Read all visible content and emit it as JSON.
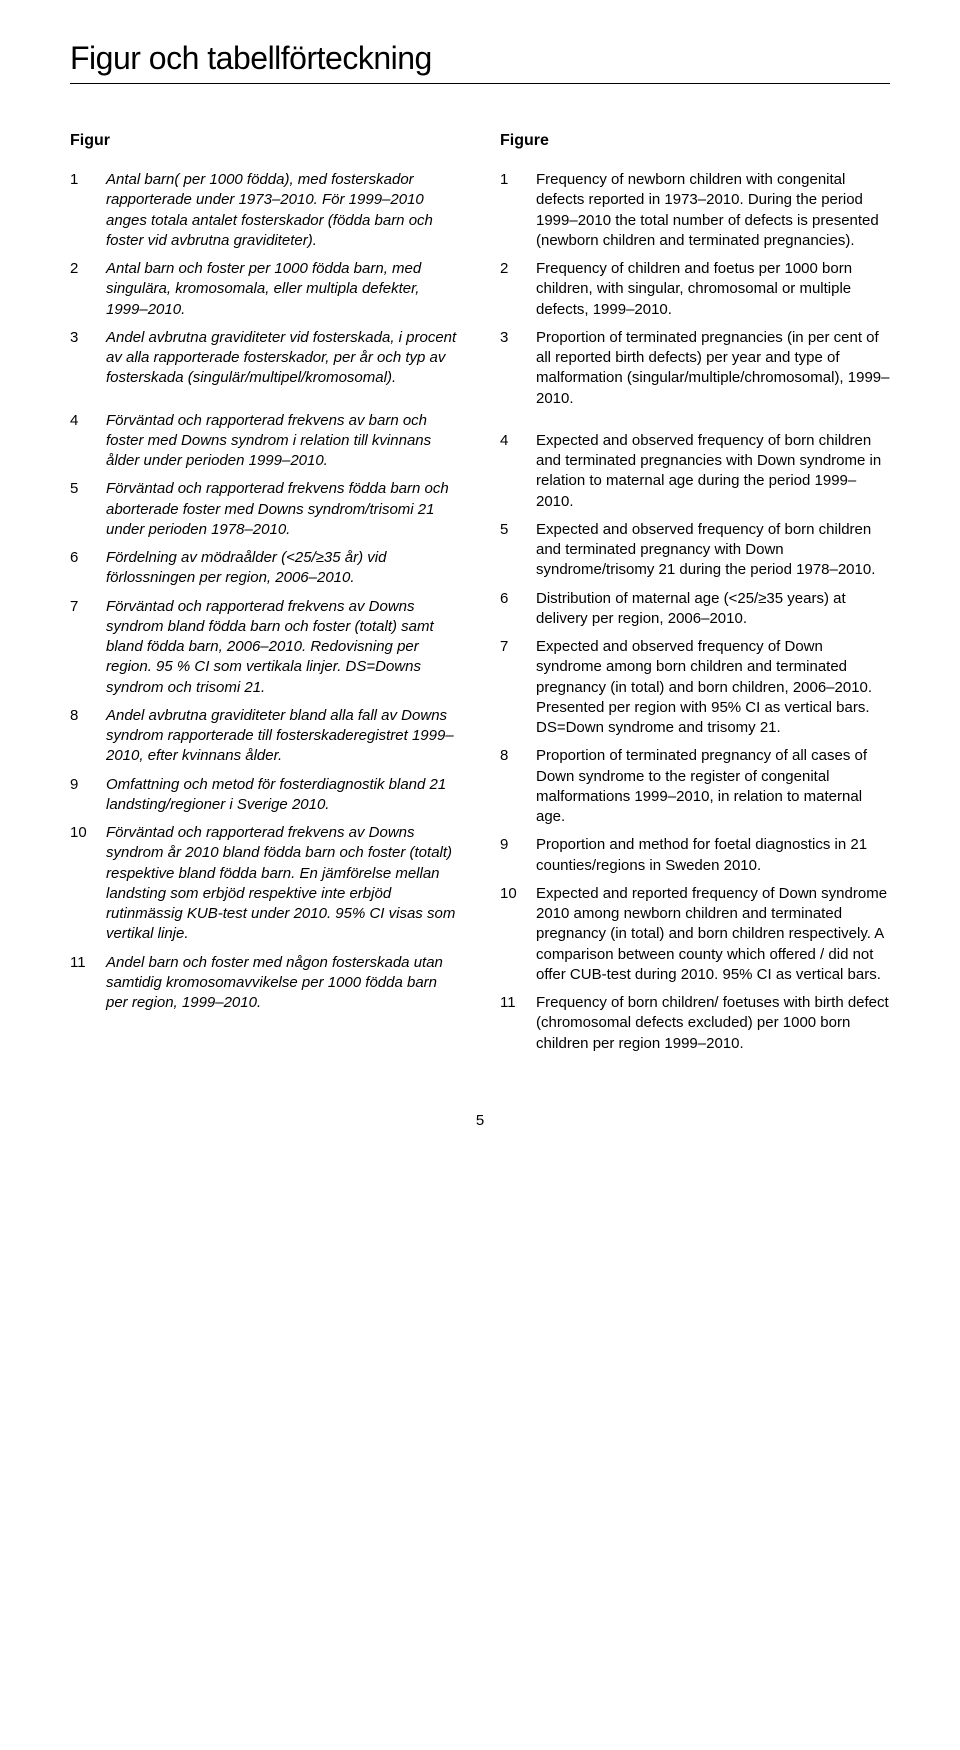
{
  "title": "Figur och tabellförteckning",
  "leftHeader": "Figur",
  "rightHeader": "Figure",
  "pageNumber": "5",
  "left": [
    {
      "n": "1",
      "t": "Antal barn( per 1000 födda), med fosterskador rapporterade under 1973–2010. För 1999–2010 anges totala antalet fosterskador (födda barn och foster vid avbrutna graviditeter)."
    },
    {
      "n": "2",
      "t": "Antal barn och foster per 1000 födda barn, med singulära, kromosomala, eller multipla defekter, 1999–2010."
    },
    {
      "n": "3",
      "t": "Andel avbrutna graviditeter vid fosterskada, i procent av alla rapporterade fosterskador, per år och typ av fosterskada (singulär/multipel/kromosomal)."
    },
    {
      "n": "4",
      "t": "Förväntad och rapporterad frekvens av barn och foster med Downs syndrom i relation till kvinnans ålder under perioden 1999–2010."
    },
    {
      "n": "5",
      "t": "Förväntad och rapporterad frekvens födda barn och aborterade foster med Downs syndrom/trisomi 21 under perioden 1978–2010."
    },
    {
      "n": "6",
      "t": "Fördelning av mödraålder (<25/≥35 år) vid förlossningen per region, 2006–2010."
    },
    {
      "n": "7",
      "t": "Förväntad och rapporterad frekvens av Downs syndrom bland födda barn och foster (totalt) samt bland födda barn, 2006–2010. Redovisning per region. 95 % CI som vertikala linjer. DS=Downs syndrom och trisomi 21."
    },
    {
      "n": "8",
      "t": "Andel avbrutna graviditeter bland alla fall av Downs syndrom rapporterade till fosterskaderegistret 1999–2010, efter kvinnans ålder."
    },
    {
      "n": "9",
      "t": "Omfattning och metod för fosterdiagnostik bland 21 landsting/regioner i Sverige 2010."
    },
    {
      "n": "10",
      "t": "Förväntad och rapporterad frekvens av Downs syndrom år 2010 bland födda barn och foster (totalt) respektive bland födda barn. En jämförelse mellan landsting som erbjöd respektive inte erbjöd rutinmässig KUB-test under 2010. 95% CI visas som vertikal linje."
    },
    {
      "n": "11",
      "t": "Andel barn och foster med någon fosterskada utan samtidig kromosomavvikelse per 1000 födda barn per region, 1999–2010."
    }
  ],
  "right": [
    {
      "n": "1",
      "t": "Frequency of newborn children with congenital defects reported in 1973–2010. During the period 1999–2010 the total number of defects is presented (newborn children and terminated pregnancies)."
    },
    {
      "n": "2",
      "t": "Frequency of children and foetus per 1000 born children, with singular, chromosomal or multiple defects, 1999–2010."
    },
    {
      "n": "3",
      "t": "Proportion of terminated pregnancies (in per cent of all reported birth defects) per year and type of malformation (singular/multiple/chromosomal), 1999–2010."
    },
    {
      "n": "4",
      "t": "Expected and observed frequency of born children and terminated pregnancies with Down syndrome in relation to maternal age during the period 1999–2010."
    },
    {
      "n": "5",
      "t": "Expected and observed frequency of born children and terminated pregnancy with Down syndrome/trisomy 21 during the period 1978–2010."
    },
    {
      "n": "6",
      "t": "Distribution of maternal age (<25/≥35 years) at delivery per region, 2006–2010."
    },
    {
      "n": "7",
      "t": "Expected and observed frequency of Down syndrome among born children and terminated pregnancy (in total) and born children, 2006–2010. Presented per region with 95% CI as vertical bars. DS=Down syndrome and trisomy 21."
    },
    {
      "n": "8",
      "t": "Proportion of terminated pregnancy of all cases of Down syndrome to the register of congenital malformations 1999–2010, in relation to maternal age."
    },
    {
      "n": "9",
      "t": "Proportion and method for foetal diagnostics in 21 counties/regions in Sweden 2010."
    },
    {
      "n": "10",
      "t": "Expected and reported frequency of Down syndrome 2010 among newborn children and terminated pregnancy (in total) and born children respectively. A comparison between county which offered / did not offer CUB-test during 2010. 95% CI as vertical bars."
    },
    {
      "n": "11",
      "t": "Frequency of born children/ foetuses with birth defect (chromosomal defects excluded) per 1000 born children per region 1999–2010."
    }
  ]
}
